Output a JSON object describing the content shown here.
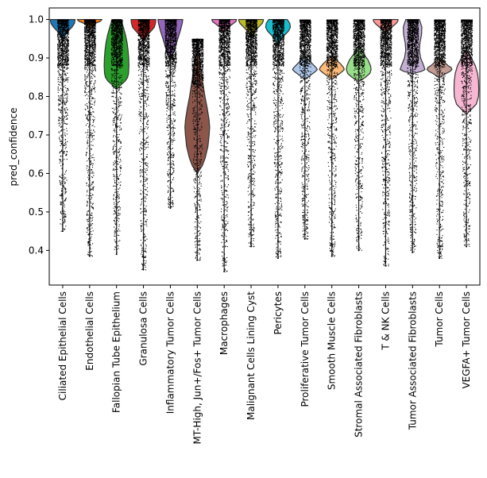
{
  "chart_data": {
    "type": "violin",
    "title": "",
    "xlabel": "",
    "ylabel": "pred_confidence",
    "ylim": [
      0.31,
      1.03
    ],
    "yticks": [
      "0.4",
      "0.5",
      "0.6",
      "0.7",
      "0.8",
      "0.9",
      "1.0"
    ],
    "grid": false,
    "legend": "none",
    "point_color": "#000000",
    "categories": [
      "Ciliated Epithelial Cells",
      "Endothelial Cells",
      "Fallopian Tube Epithelium",
      "Granulosa Cells",
      "Inflammatory Tumor Cells",
      "MT-High, Jun+/Fos+ Tumor Cells",
      "Macrophages",
      "Malignant Cells Lining Cyst",
      "Pericytes",
      "Proliferative Tumor Cells",
      "Smooth Muscle Cells",
      "Stromal Associated Fibroblasts",
      "T & NK Cells",
      "Tumor Associated Fibroblasts",
      "Tumor Cells",
      "VEGFA+ Tumor Cells"
    ],
    "series": [
      {
        "category": "Ciliated Epithelial Cells",
        "color": "#1f77b4",
        "min": 0.45,
        "max": 1.0,
        "violin_top": 0.945,
        "profile": [
          [
            1.0,
            1.0
          ],
          [
            0.99,
            0.95
          ],
          [
            0.98,
            0.75
          ],
          [
            0.97,
            0.45
          ],
          [
            0.96,
            0.22
          ],
          [
            0.95,
            0.08
          ],
          [
            0.945,
            0.03
          ]
        ]
      },
      {
        "category": "Endothelial Cells",
        "color": "#ff7f0e",
        "min": 0.385,
        "max": 1.0,
        "violin_top": 0.975,
        "profile": [
          [
            1.0,
            1.0
          ],
          [
            0.995,
            0.85
          ],
          [
            0.99,
            0.45
          ],
          [
            0.98,
            0.12
          ],
          [
            0.975,
            0.04
          ]
        ]
      },
      {
        "category": "Fallopian Tube Epithelium",
        "color": "#2ca02c",
        "min": 0.39,
        "max": 1.0,
        "violin_top": 0.82,
        "profile": [
          [
            1.0,
            0.35
          ],
          [
            0.98,
            0.55
          ],
          [
            0.96,
            0.72
          ],
          [
            0.94,
            0.85
          ],
          [
            0.92,
            0.93
          ],
          [
            0.9,
            0.98
          ],
          [
            0.88,
            1.0
          ],
          [
            0.86,
            0.97
          ],
          [
            0.85,
            0.9
          ],
          [
            0.84,
            0.7
          ],
          [
            0.83,
            0.35
          ],
          [
            0.82,
            0.08
          ]
        ]
      },
      {
        "category": "Granulosa Cells",
        "color": "#d62728",
        "min": 0.35,
        "max": 1.0,
        "violin_top": 0.945,
        "profile": [
          [
            1.0,
            1.0
          ],
          [
            0.99,
            0.97
          ],
          [
            0.98,
            0.88
          ],
          [
            0.97,
            0.62
          ],
          [
            0.96,
            0.32
          ],
          [
            0.95,
            0.12
          ],
          [
            0.945,
            0.04
          ]
        ]
      },
      {
        "category": "Inflammatory Tumor Cells",
        "color": "#9467bd",
        "min": 0.51,
        "max": 1.0,
        "violin_top": 0.9,
        "profile": [
          [
            1.0,
            1.0
          ],
          [
            0.99,
            0.96
          ],
          [
            0.97,
            0.8
          ],
          [
            0.95,
            0.6
          ],
          [
            0.93,
            0.42
          ],
          [
            0.91,
            0.22
          ],
          [
            0.9,
            0.06
          ]
        ]
      },
      {
        "category": "MT-High, Jun+/Fos+ Tumor Cells",
        "color": "#8c564b",
        "min": 0.375,
        "max": 0.95,
        "violin_top": 0.95,
        "violin_bottom": 0.6,
        "profile": [
          [
            0.95,
            0.0
          ],
          [
            0.9,
            0.18
          ],
          [
            0.85,
            0.38
          ],
          [
            0.8,
            0.62
          ],
          [
            0.77,
            0.8
          ],
          [
            0.74,
            0.95
          ],
          [
            0.72,
            1.0
          ],
          [
            0.7,
            0.96
          ],
          [
            0.67,
            0.86
          ],
          [
            0.64,
            0.64
          ],
          [
            0.62,
            0.4
          ],
          [
            0.6,
            0.0
          ]
        ]
      },
      {
        "category": "Macrophages",
        "color": "#e377c2",
        "min": 0.345,
        "max": 1.0,
        "violin_top": 0.97,
        "profile": [
          [
            1.0,
            1.0
          ],
          [
            0.995,
            0.95
          ],
          [
            0.99,
            0.75
          ],
          [
            0.98,
            0.35
          ],
          [
            0.97,
            0.08
          ]
        ]
      },
      {
        "category": "Malignant Cells Lining Cyst",
        "color": "#bcbd22",
        "min": 0.41,
        "max": 1.0,
        "violin_top": 0.955,
        "profile": [
          [
            1.0,
            1.0
          ],
          [
            0.995,
            0.97
          ],
          [
            0.99,
            0.9
          ],
          [
            0.98,
            0.6
          ],
          [
            0.97,
            0.3
          ],
          [
            0.96,
            0.1
          ],
          [
            0.955,
            0.03
          ]
        ]
      },
      {
        "category": "Pericytes",
        "color": "#17becf",
        "min": 0.38,
        "max": 1.0,
        "violin_top": 0.93,
        "profile": [
          [
            1.0,
            0.75
          ],
          [
            0.99,
            0.95
          ],
          [
            0.98,
            1.0
          ],
          [
            0.97,
            0.85
          ],
          [
            0.96,
            0.55
          ],
          [
            0.95,
            0.28
          ],
          [
            0.94,
            0.1
          ],
          [
            0.93,
            0.03
          ]
        ]
      },
      {
        "category": "Proliferative Tumor Cells",
        "color": "#aec7e8",
        "min": 0.43,
        "max": 1.0,
        "violin_top": 0.905,
        "violin_bottom": 0.845,
        "profile": [
          [
            0.905,
            0.05
          ],
          [
            0.895,
            0.3
          ],
          [
            0.885,
            0.6
          ],
          [
            0.875,
            0.9
          ],
          [
            0.87,
            1.0
          ],
          [
            0.865,
            0.85
          ],
          [
            0.855,
            0.45
          ],
          [
            0.845,
            0.05
          ]
        ]
      },
      {
        "category": "Smooth Muscle Cells",
        "color": "#ffbb78",
        "min": 0.385,
        "max": 1.0,
        "violin_top": 0.905,
        "violin_bottom": 0.845,
        "profile": [
          [
            0.905,
            0.05
          ],
          [
            0.895,
            0.35
          ],
          [
            0.885,
            0.7
          ],
          [
            0.875,
            0.95
          ],
          [
            0.87,
            1.0
          ],
          [
            0.865,
            0.85
          ],
          [
            0.855,
            0.45
          ],
          [
            0.845,
            0.05
          ]
        ]
      },
      {
        "category": "Stromal Associated Fibroblasts",
        "color": "#98df8a",
        "min": 0.4,
        "max": 1.0,
        "violin_top": 0.93,
        "violin_bottom": 0.84,
        "profile": [
          [
            0.93,
            0.08
          ],
          [
            0.91,
            0.4
          ],
          [
            0.895,
            0.75
          ],
          [
            0.88,
            0.95
          ],
          [
            0.87,
            1.0
          ],
          [
            0.86,
            0.9
          ],
          [
            0.85,
            0.55
          ],
          [
            0.84,
            0.08
          ]
        ]
      },
      {
        "category": "T & NK Cells",
        "color": "#ff9896",
        "min": 0.36,
        "max": 1.0,
        "violin_top": 0.96,
        "profile": [
          [
            1.0,
            1.0
          ],
          [
            0.995,
            0.97
          ],
          [
            0.99,
            0.85
          ],
          [
            0.98,
            0.5
          ],
          [
            0.97,
            0.2
          ],
          [
            0.96,
            0.04
          ]
        ]
      },
      {
        "category": "Tumor Associated Fibroblasts",
        "color": "#c5b0d5",
        "min": 0.395,
        "max": 1.0,
        "violin_top": 0.86,
        "profile": [
          [
            1.0,
            0.55
          ],
          [
            0.98,
            0.75
          ],
          [
            0.96,
            0.72
          ],
          [
            0.94,
            0.6
          ],
          [
            0.92,
            0.55
          ],
          [
            0.9,
            0.65
          ],
          [
            0.88,
            0.9
          ],
          [
            0.87,
            1.0
          ],
          [
            0.865,
            0.7
          ],
          [
            0.86,
            0.08
          ]
        ]
      },
      {
        "category": "Tumor Cells",
        "color": "#c49c94",
        "min": 0.38,
        "max": 1.0,
        "violin_top": 0.9,
        "violin_bottom": 0.85,
        "profile": [
          [
            0.9,
            0.05
          ],
          [
            0.89,
            0.35
          ],
          [
            0.88,
            0.7
          ],
          [
            0.875,
            0.95
          ],
          [
            0.87,
            1.0
          ],
          [
            0.865,
            0.85
          ],
          [
            0.86,
            0.55
          ],
          [
            0.85,
            0.05
          ]
        ]
      },
      {
        "category": "VEGFA+ Tumor Cells",
        "color": "#f7b6d2",
        "min": 0.41,
        "max": 1.0,
        "violin_top": 0.92,
        "violin_bottom": 0.755,
        "profile": [
          [
            0.92,
            0.05
          ],
          [
            0.9,
            0.4
          ],
          [
            0.88,
            0.72
          ],
          [
            0.86,
            0.9
          ],
          [
            0.84,
            0.98
          ],
          [
            0.82,
            1.0
          ],
          [
            0.8,
            0.98
          ],
          [
            0.78,
            0.8
          ],
          [
            0.77,
            0.5
          ],
          [
            0.755,
            0.05
          ]
        ]
      }
    ]
  }
}
